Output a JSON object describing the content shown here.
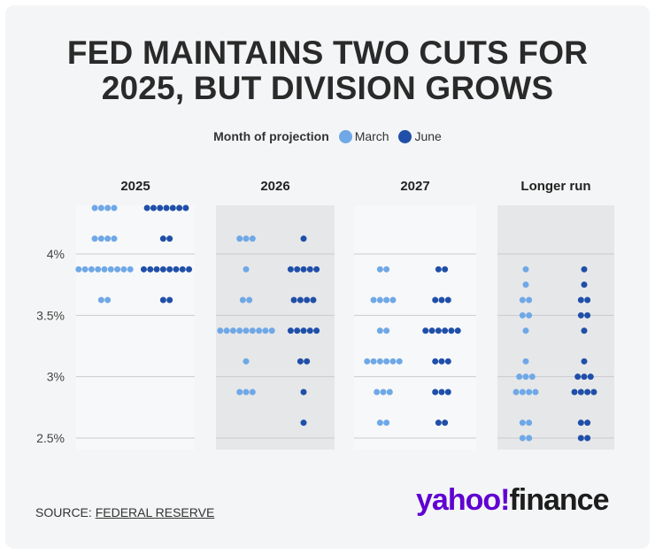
{
  "title": {
    "line1": "FED MAINTAINS TWO CUTS FOR",
    "line2": "2025, BUT DIVISION GROWS"
  },
  "legend": {
    "title": "Month of projection",
    "items": [
      {
        "label": "March",
        "color": "#6fa8e6"
      },
      {
        "label": "June",
        "color": "#1f4fa8"
      }
    ]
  },
  "chart_data": {
    "type": "scatter",
    "subtype": "dot-plot",
    "title": "FED MAINTAINS TWO CUTS FOR 2025, BUT DIVISION GROWS",
    "ylabel": "",
    "ylim": [
      2.375,
      4.5
    ],
    "yticks": [
      {
        "value": 4.0,
        "label": "4%"
      },
      {
        "value": 3.5,
        "label": "3.5%"
      },
      {
        "value": 3.0,
        "label": "3%"
      },
      {
        "value": 2.5,
        "label": "2.5%"
      }
    ],
    "panels": [
      {
        "label": "2025",
        "march": [
          {
            "rate": 4.375,
            "count": 4
          },
          {
            "rate": 4.125,
            "count": 4
          },
          {
            "rate": 3.875,
            "count": 9
          },
          {
            "rate": 3.625,
            "count": 2
          }
        ],
        "june": [
          {
            "rate": 4.375,
            "count": 7
          },
          {
            "rate": 4.125,
            "count": 2
          },
          {
            "rate": 3.875,
            "count": 8
          },
          {
            "rate": 3.625,
            "count": 2
          }
        ]
      },
      {
        "label": "2026",
        "march": [
          {
            "rate": 4.125,
            "count": 3
          },
          {
            "rate": 3.875,
            "count": 1
          },
          {
            "rate": 3.625,
            "count": 2
          },
          {
            "rate": 3.375,
            "count": 9
          },
          {
            "rate": 3.125,
            "count": 1
          },
          {
            "rate": 2.875,
            "count": 3
          }
        ],
        "june": [
          {
            "rate": 4.125,
            "count": 1
          },
          {
            "rate": 3.875,
            "count": 5
          },
          {
            "rate": 3.625,
            "count": 4
          },
          {
            "rate": 3.375,
            "count": 5
          },
          {
            "rate": 3.125,
            "count": 2
          },
          {
            "rate": 2.875,
            "count": 1
          },
          {
            "rate": 2.625,
            "count": 1
          }
        ]
      },
      {
        "label": "2027",
        "march": [
          {
            "rate": 3.875,
            "count": 2
          },
          {
            "rate": 3.625,
            "count": 4
          },
          {
            "rate": 3.375,
            "count": 2
          },
          {
            "rate": 3.125,
            "count": 6
          },
          {
            "rate": 2.875,
            "count": 3
          },
          {
            "rate": 2.625,
            "count": 2
          }
        ],
        "june": [
          {
            "rate": 3.875,
            "count": 2
          },
          {
            "rate": 3.625,
            "count": 3
          },
          {
            "rate": 3.375,
            "count": 6
          },
          {
            "rate": 3.125,
            "count": 3
          },
          {
            "rate": 2.875,
            "count": 3
          },
          {
            "rate": 2.625,
            "count": 2
          }
        ]
      },
      {
        "label": "Longer run",
        "march": [
          {
            "rate": 3.875,
            "count": 1
          },
          {
            "rate": 3.75,
            "count": 1
          },
          {
            "rate": 3.625,
            "count": 2
          },
          {
            "rate": 3.5,
            "count": 2
          },
          {
            "rate": 3.375,
            "count": 1
          },
          {
            "rate": 3.125,
            "count": 1
          },
          {
            "rate": 3.0,
            "count": 3
          },
          {
            "rate": 2.875,
            "count": 4
          },
          {
            "rate": 2.625,
            "count": 2
          },
          {
            "rate": 2.5,
            "count": 2
          }
        ],
        "june": [
          {
            "rate": 3.875,
            "count": 1
          },
          {
            "rate": 3.75,
            "count": 1
          },
          {
            "rate": 3.625,
            "count": 2
          },
          {
            "rate": 3.5,
            "count": 2
          },
          {
            "rate": 3.375,
            "count": 1
          },
          {
            "rate": 3.125,
            "count": 1
          },
          {
            "rate": 3.0,
            "count": 3
          },
          {
            "rate": 2.875,
            "count": 4
          },
          {
            "rate": 2.625,
            "count": 2
          },
          {
            "rate": 2.5,
            "count": 2
          }
        ]
      }
    ]
  },
  "source": {
    "prefix": "SOURCE: ",
    "link": "FEDERAL RESERVE"
  },
  "logo": {
    "brand": "yahoo!",
    "product": "finance"
  }
}
